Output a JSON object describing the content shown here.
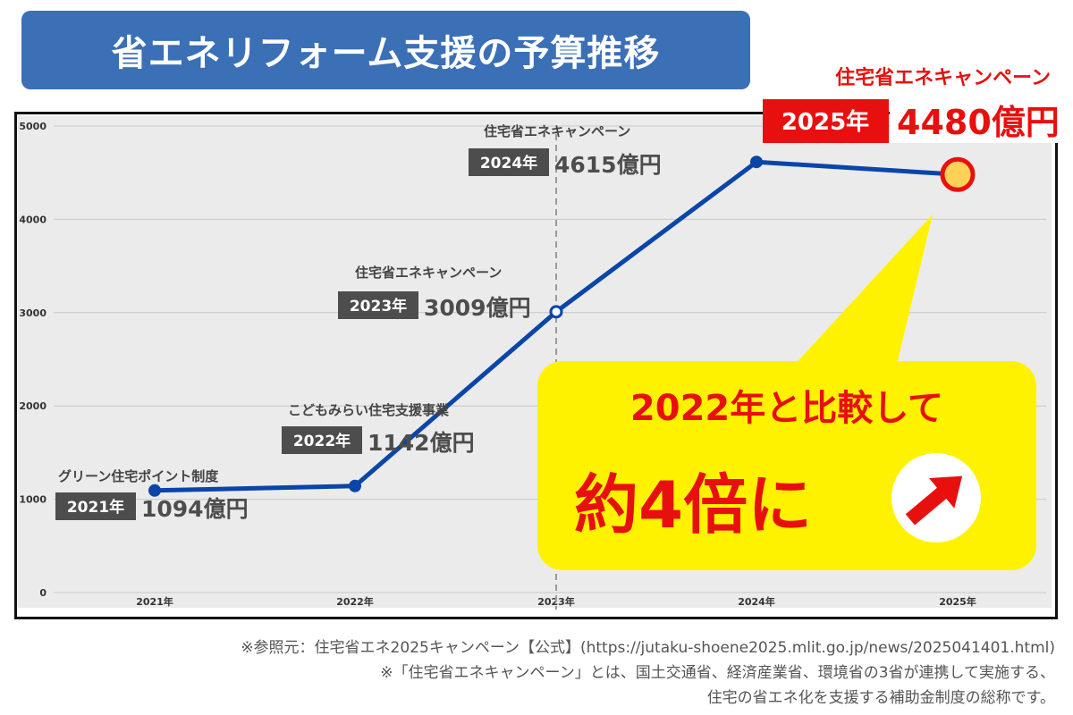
{
  "title": "省エネリフォーム支援の予算推移",
  "colors": {
    "title_bg": "#3b6fb6",
    "line": "#0a45a8",
    "plot_bg": "#ebebeb",
    "label_tag": "#4d4d4d",
    "highlight_red": "#e8100f",
    "callout_yellow": "#fff200",
    "marker_gold": "#ffd257"
  },
  "chart_data": {
    "type": "line",
    "categories": [
      "2021年",
      "2022年",
      "2023年",
      "2024年",
      "2025年"
    ],
    "series": [
      {
        "values": [
          1094,
          1142,
          3009,
          4615,
          4480
        ]
      }
    ],
    "ylim": [
      0,
      5000
    ],
    "yticks": [
      "0",
      "1000",
      "2000",
      "3000",
      "4000",
      "5000"
    ],
    "grid": true,
    "reference_line_category": "2023年",
    "annotations": [
      {
        "program": "グリーン住宅ポイント制度",
        "year": "2021年",
        "amount": "1094億円"
      },
      {
        "program": "こどもみらい住宅支援事業",
        "year": "2022年",
        "amount": "1142億円"
      },
      {
        "program": "住宅省エネキャンペーン",
        "year": "2023年",
        "amount": "3009億円"
      },
      {
        "program": "住宅省エネキャンペーン",
        "year": "2024年",
        "amount": "4615億円"
      },
      {
        "program": "住宅省エネキャンペーン",
        "year": "2025年",
        "amount": "4480億円"
      }
    ],
    "callout": {
      "line1": "2022年と比較して",
      "line2": "約4倍に",
      "icon": "arrow-up-right-icon"
    }
  },
  "footnotes": [
    "※参照元：住宅省エネ2025キャンペーン【公式】(https://jutaku-shoene2025.mlit.go.jp/news/2025041401.html)",
    "※「住宅省エネキャンペーン」とは、国土交通省、経済産業省、環境省の3省が連携して実施する、",
    "住宅の省エネ化を支援する補助金制度の総称です。"
  ]
}
